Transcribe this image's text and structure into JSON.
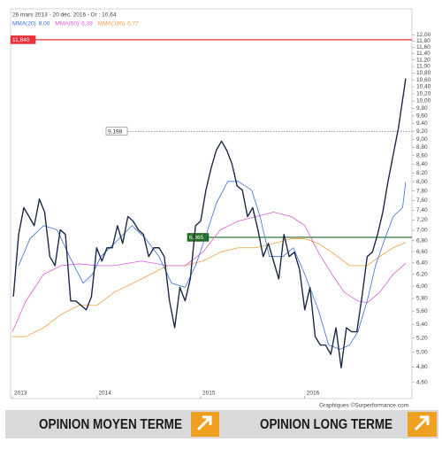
{
  "chart_data": {
    "type": "line",
    "subtitle": "26 mars 2013 - 20 déc. 2016 - Dr : 10,64",
    "log_scale": true,
    "xlim": [
      2013.19,
      2017.03
    ],
    "xticks": [
      {
        "value": 2013.19,
        "label": "2013"
      },
      {
        "value": 2014,
        "label": "2014"
      },
      {
        "value": 2015,
        "label": "2015"
      },
      {
        "value": 2016,
        "label": "2016"
      }
    ],
    "ylim": [
      4.4,
      12.8
    ],
    "yticks": [
      {
        "value": 4.6,
        "label": "4,60"
      },
      {
        "value": 4.8,
        "label": "4,80"
      },
      {
        "value": 5.0,
        "label": "5,00"
      },
      {
        "value": 5.2,
        "label": "5,20"
      },
      {
        "value": 5.4,
        "label": "5,40"
      },
      {
        "value": 5.6,
        "label": "5,60"
      },
      {
        "value": 5.8,
        "label": "5,80"
      },
      {
        "value": 6.0,
        "label": "6,00"
      },
      {
        "value": 6.2,
        "label": "6,20"
      },
      {
        "value": 6.4,
        "label": "6,40"
      },
      {
        "value": 6.6,
        "label": "6,60"
      },
      {
        "value": 6.8,
        "label": "6,80"
      },
      {
        "value": 7.0,
        "label": "7,00"
      },
      {
        "value": 7.2,
        "label": "7,20"
      },
      {
        "value": 7.4,
        "label": "7,40"
      },
      {
        "value": 7.6,
        "label": "7,60"
      },
      {
        "value": 7.8,
        "label": "7,80"
      },
      {
        "value": 8.0,
        "label": "8,00"
      },
      {
        "value": 8.2,
        "label": "8,20"
      },
      {
        "value": 8.4,
        "label": "8,40"
      },
      {
        "value": 8.6,
        "label": "8,60"
      },
      {
        "value": 8.8,
        "label": "8,80"
      },
      {
        "value": 9.0,
        "label": "9,00"
      },
      {
        "value": 9.2,
        "label": "9,20"
      },
      {
        "value": 9.4,
        "label": "9,40"
      },
      {
        "value": 9.6,
        "label": "9,60"
      },
      {
        "value": 9.8,
        "label": "9,80"
      },
      {
        "value": 10.0,
        "label": "10,00"
      },
      {
        "value": 10.2,
        "label": "10,20"
      },
      {
        "value": 10.4,
        "label": "10,40"
      },
      {
        "value": 10.6,
        "label": "10,60"
      },
      {
        "value": 10.8,
        "label": "10,80"
      },
      {
        "value": 11.0,
        "label": "11,00"
      },
      {
        "value": 11.2,
        "label": "11,20"
      },
      {
        "value": 11.4,
        "label": "11,40"
      },
      {
        "value": 11.6,
        "label": "11,60"
      },
      {
        "value": 11.8,
        "label": "11,80"
      },
      {
        "value": 12.0,
        "label": "12,00"
      }
    ],
    "hlines": [
      {
        "value": 11.84,
        "label": "11,840",
        "color": "#e8303a"
      },
      {
        "value": 9.198,
        "label": "9,198",
        "color": "#777777"
      },
      {
        "value": 6.865,
        "label": "6,865",
        "color": "#1f6e1f"
      }
    ],
    "series": [
      {
        "color": "#1c2a48",
        "x": [
          2013.2,
          2013.25,
          2013.3,
          2013.35,
          2013.4,
          2013.45,
          2013.5,
          2013.55,
          2013.6,
          2013.65,
          2013.7,
          2013.75,
          2013.8,
          2013.85,
          2013.9,
          2013.95,
          2014.0,
          2014.05,
          2014.1,
          2014.15,
          2014.2,
          2014.25,
          2014.3,
          2014.35,
          2014.4,
          2014.45,
          2014.5,
          2014.55,
          2014.6,
          2014.65,
          2014.7,
          2014.75,
          2014.8,
          2014.85,
          2014.9,
          2014.95,
          2015.0,
          2015.05,
          2015.1,
          2015.15,
          2015.2,
          2015.25,
          2015.3,
          2015.35,
          2015.4,
          2015.45,
          2015.5,
          2015.55,
          2015.6,
          2015.65,
          2015.7,
          2015.75,
          2015.8,
          2015.85,
          2015.9,
          2015.95,
          2016.0,
          2016.05,
          2016.1,
          2016.15,
          2016.2,
          2016.25,
          2016.3,
          2016.35,
          2016.4,
          2016.45,
          2016.5,
          2016.55,
          2016.6,
          2016.65,
          2016.7,
          2016.75,
          2016.8,
          2016.85,
          2016.9,
          2016.95,
          2016.97
        ],
        "values": [
          5.83,
          6.92,
          7.45,
          7.27,
          7.09,
          7.63,
          7.36,
          6.51,
          6.35,
          7.01,
          6.92,
          5.76,
          5.76,
          5.69,
          5.62,
          5.83,
          6.67,
          6.43,
          6.67,
          6.67,
          7.09,
          6.75,
          7.27,
          7.18,
          7.01,
          6.92,
          6.51,
          6.67,
          6.67,
          6.51,
          5.76,
          5.35,
          5.98,
          5.76,
          6.12,
          7.09,
          7.18,
          7.82,
          8.31,
          8.73,
          8.95,
          8.73,
          8.41,
          7.91,
          7.82,
          7.27,
          7.45,
          7.01,
          6.51,
          6.75,
          6.43,
          6.12,
          6.92,
          6.51,
          6.59,
          6.28,
          5.62,
          5.98,
          5.22,
          5.1,
          5.1,
          4.97,
          5.35,
          4.79,
          5.35,
          5.29,
          5.29,
          5.83,
          6.51,
          6.59,
          6.92,
          7.36,
          8.01,
          8.62,
          9.28,
          10.23,
          10.64
        ]
      },
      {
        "name": "MMA(20)",
        "last_label": "8,00",
        "color": "#3a6fd8",
        "x": [
          2013.25,
          2013.36,
          2013.49,
          2013.62,
          2013.74,
          2013.87,
          2013.96,
          2014.04,
          2014.17,
          2014.34,
          2014.47,
          2014.6,
          2014.72,
          2014.85,
          2014.95,
          2015.04,
          2015.15,
          2015.26,
          2015.36,
          2015.49,
          2015.57,
          2015.66,
          2015.79,
          2015.89,
          2016.0,
          2016.13,
          2016.23,
          2016.34,
          2016.43,
          2016.51,
          2016.6,
          2016.68,
          2016.77,
          2016.85,
          2016.94,
          2016.97
        ],
        "values": [
          6.35,
          6.84,
          7.09,
          7.01,
          6.51,
          6.05,
          6.2,
          6.51,
          6.75,
          7.09,
          6.84,
          6.51,
          6.05,
          5.98,
          6.35,
          6.84,
          7.54,
          8.01,
          8.01,
          7.82,
          7.27,
          6.51,
          6.51,
          6.67,
          6.2,
          5.62,
          5.1,
          5.04,
          5.1,
          5.29,
          5.76,
          6.35,
          6.84,
          7.27,
          7.45,
          8.0
        ]
      },
      {
        "name": "MMA(50)",
        "last_label": "6,39",
        "color": "#e05ad8",
        "x": [
          2013.19,
          2013.32,
          2013.49,
          2013.66,
          2013.83,
          2014.0,
          2014.17,
          2014.43,
          2014.68,
          2014.85,
          2015.02,
          2015.19,
          2015.36,
          2015.53,
          2015.7,
          2015.87,
          2016.0,
          2016.13,
          2016.26,
          2016.38,
          2016.51,
          2016.6,
          2016.72,
          2016.85,
          2016.97
        ],
        "values": [
          5.29,
          5.76,
          6.2,
          6.35,
          6.38,
          6.35,
          6.35,
          6.43,
          6.35,
          6.35,
          6.59,
          7.01,
          7.18,
          7.27,
          7.36,
          7.27,
          7.09,
          6.59,
          6.2,
          5.9,
          5.76,
          5.73,
          5.9,
          6.2,
          6.39
        ]
      },
      {
        "name": "MMA(100)",
        "last_label": "6,77",
        "color": "#f0a040",
        "x": [
          2013.19,
          2013.32,
          2013.49,
          2013.66,
          2013.83,
          2014.0,
          2014.17,
          2014.43,
          2014.68,
          2014.85,
          2015.02,
          2015.19,
          2015.36,
          2015.53,
          2015.7,
          2015.87,
          2016.0,
          2016.13,
          2016.26,
          2016.43,
          2016.6,
          2016.72,
          2016.85,
          2016.97
        ],
        "values": [
          5.22,
          5.22,
          5.35,
          5.55,
          5.69,
          5.69,
          5.9,
          6.12,
          6.35,
          6.35,
          6.43,
          6.59,
          6.67,
          6.67,
          6.75,
          6.84,
          6.84,
          6.75,
          6.59,
          6.35,
          6.35,
          6.51,
          6.67,
          6.77
        ]
      }
    ],
    "credit": "Graphiques ©Surperformance.com"
  },
  "buttons": [
    "OPINION MOYEN TERME",
    "OPINION LONG TERME"
  ]
}
